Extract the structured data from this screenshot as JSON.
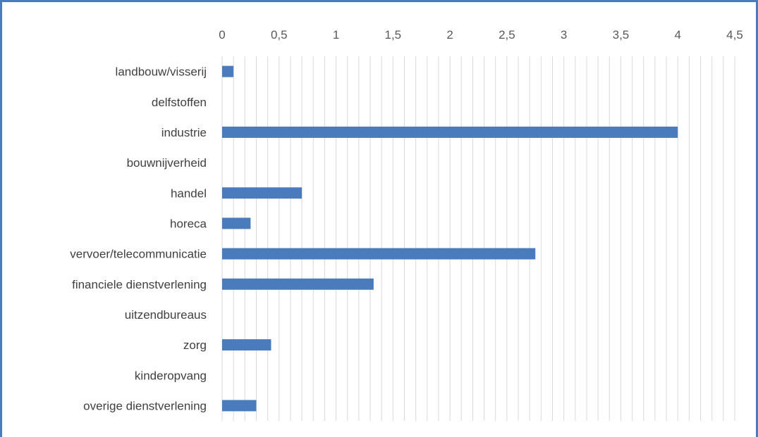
{
  "chart_data": {
    "type": "bar",
    "orientation": "horizontal",
    "title": "",
    "xlabel": "",
    "ylabel": "",
    "categories": [
      "landbouw/visserij",
      "delfstoffen",
      "industrie",
      "bouwnijverheid",
      "handel",
      "horeca",
      "vervoer/telecommunicatie",
      "financiele dienstverlening",
      "uitzendbureaus",
      "zorg",
      "kinderopvang",
      "overige dienstverlening"
    ],
    "values": [
      0.1,
      0,
      4,
      0,
      0.7,
      0.25,
      2.75,
      1.33,
      0,
      0.43,
      0,
      0.3
    ],
    "xlim": [
      0,
      4.5
    ],
    "xticks": [
      "0",
      "0,5",
      "1",
      "1,5",
      "2",
      "2,5",
      "3",
      "3,5",
      "4",
      "4,5"
    ],
    "x_axis_position": "top",
    "grid": true,
    "legend": "none",
    "bar_color": "#4a7bbd",
    "grid_color": "#d9d9d9",
    "frame_color": "#4a7bbd"
  }
}
